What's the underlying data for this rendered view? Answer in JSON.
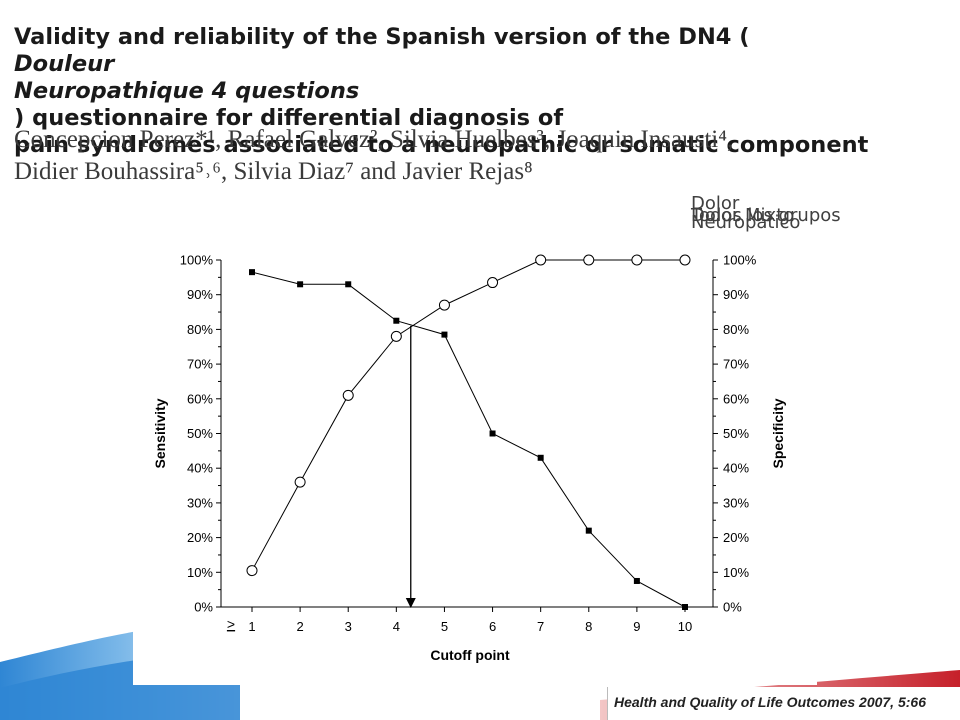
{
  "slide": {
    "title_lines": [
      {
        "pre": "Validity and reliability of the Spanish version of the DN4 (",
        "it": "Douleur",
        "post": ""
      },
      {
        "pre": "",
        "it": "Neuropathique 4 questions",
        "post": ") questionnaire for differential diagnosis of"
      },
      {
        "pre": "pain syndromes associated to a neuropathic or somatic component",
        "it": "",
        "post": ""
      }
    ],
    "author_lines": [
      "Concepcion Perez*¹, Rafael Galvez², Silvia Huelbes³, Joaquin Insausti⁴,",
      "Didier Bouhassira⁵˒⁶, Silvia Diaz⁷ and Javier Rejas⁸"
    ],
    "overlay_labels": {
      "dolor_neuropatico": "Dolor Neuropatico",
      "dolor_mixto": "Dolor Mixto",
      "todos_grupos": "Todos los grupos"
    },
    "citation": "Health and Quality of Life Outcomes 2007, 5:66"
  },
  "colors": {
    "line": "#000000",
    "deco_blue_light": "#d7e8f6",
    "deco_blue_dark": "#2f86d4",
    "deco_red": "#c6202a"
  },
  "chart_data": {
    "type": "line",
    "x": [
      1,
      2,
      3,
      4,
      5,
      6,
      7,
      8,
      9,
      10
    ],
    "x_tick_prefix": ">",
    "xlabel": "Cutoff point",
    "ylabel_left": "Sensitivity",
    "ylabel_right": "Specificity",
    "ylim": [
      0,
      100
    ],
    "y_ticks": [
      "0%",
      "10%",
      "20%",
      "30%",
      "40%",
      "50%",
      "60%",
      "70%",
      "80%",
      "90%",
      "100%"
    ],
    "series": [
      {
        "marker": "filled-square",
        "axis": "left",
        "values": [
          96.5,
          93,
          93,
          82.5,
          78.5,
          50,
          43,
          22,
          7.5,
          0
        ]
      },
      {
        "marker": "open-circle",
        "axis": "right",
        "values": [
          10.5,
          36,
          61,
          78,
          87,
          93.5,
          100,
          100,
          100,
          100
        ]
      }
    ],
    "annotation": {
      "type": "arrow",
      "x": 4.3,
      "from_y": 81,
      "to_y": 0
    },
    "grid": false
  }
}
